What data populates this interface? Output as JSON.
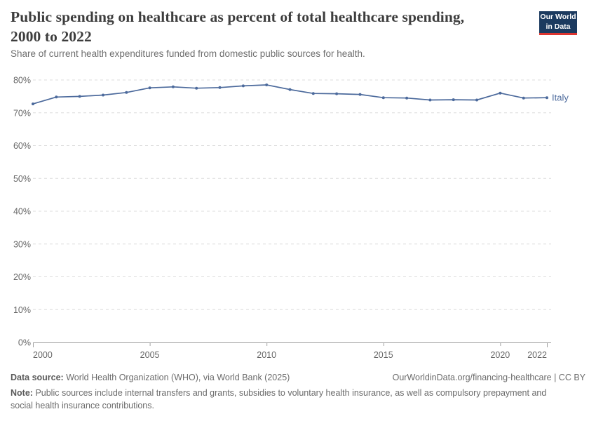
{
  "header": {
    "title": "Public spending on healthcare as percent of total healthcare spending, 2000 to 2022",
    "subtitle": "Share of current health expenditures funded from domestic public sources for health.",
    "logo": {
      "line1": "Our World",
      "line2": "in Data",
      "bg_color": "#1b3a5f",
      "accent_color": "#dc3530"
    }
  },
  "chart_data": {
    "type": "line",
    "title": "Public spending on healthcare as percent of total healthcare spending, 2000 to 2022",
    "xlabel": "",
    "ylabel": "",
    "x": [
      2000,
      2001,
      2002,
      2003,
      2004,
      2005,
      2006,
      2007,
      2008,
      2009,
      2010,
      2011,
      2012,
      2013,
      2014,
      2015,
      2016,
      2017,
      2018,
      2019,
      2020,
      2021,
      2022
    ],
    "series": [
      {
        "name": "Italy",
        "color": "#4C6A9C",
        "values": [
          72.7,
          74.8,
          75.0,
          75.4,
          76.2,
          77.6,
          77.9,
          77.5,
          77.7,
          78.2,
          78.5,
          77.1,
          75.9,
          75.8,
          75.6,
          74.6,
          74.5,
          73.9,
          74.0,
          73.9,
          76.0,
          74.5,
          74.6
        ]
      }
    ],
    "x_ticks": [
      2000,
      2005,
      2010,
      2015,
      2020,
      2022
    ],
    "y_ticks": [
      0,
      10,
      20,
      30,
      40,
      50,
      60,
      70,
      80
    ],
    "y_tick_suffix": "%",
    "xlim": [
      2000,
      2022
    ],
    "ylim": [
      0,
      80
    ],
    "grid": "horizontal-dashed",
    "legend_position": "end-of-line",
    "grid_color": "#dcdcdc",
    "axis_color": "#a3a3a3",
    "tick_label_color": "#666666",
    "marker": "dot"
  },
  "footer": {
    "datasource_label": "Data source:",
    "datasource_text": "World Health Organization (WHO), via World Bank (2025)",
    "attribution": "OurWorldinData.org/financing-healthcare | CC BY",
    "note_label": "Note:",
    "note_text": "Public sources include internal transfers and grants, subsidies to voluntary health insurance, as well as compulsory prepayment and social health insurance contributions."
  }
}
